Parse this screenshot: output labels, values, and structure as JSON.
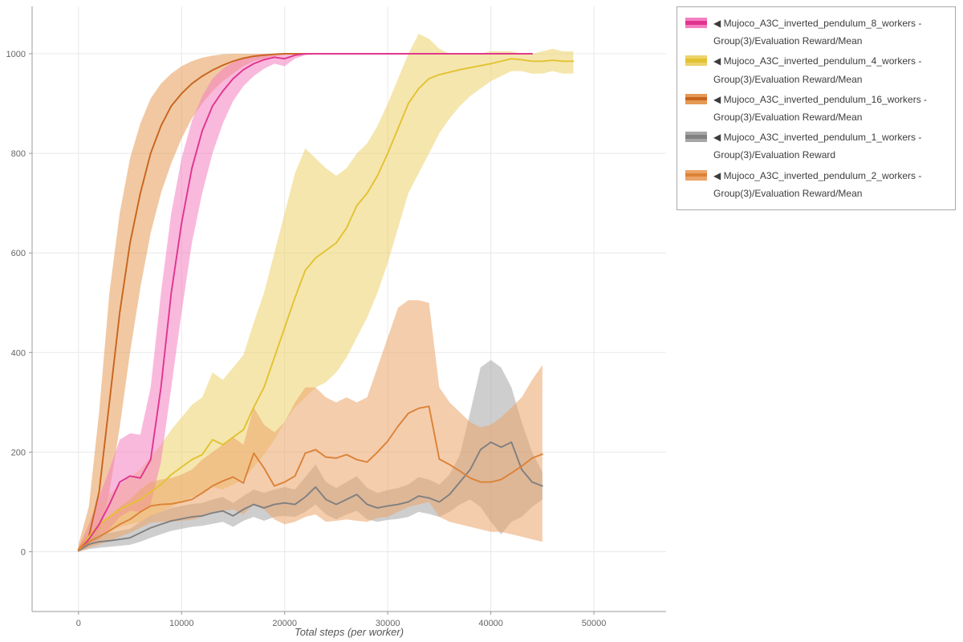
{
  "page": {
    "background": "#ffffff"
  },
  "axis": {
    "x_title": "Total steps (per worker)"
  },
  "legend": {
    "marker": "◀"
  },
  "chart_data": {
    "type": "line",
    "title": "",
    "xlabel": "Total steps (per worker)",
    "ylabel": "",
    "grid": true,
    "legend_position": "top-right",
    "xlim": [
      -4500,
      57000
    ],
    "ylim": [
      -120,
      1095
    ],
    "xticks": [
      0,
      10000,
      20000,
      30000,
      40000,
      50000
    ],
    "yticks": [
      0,
      200,
      400,
      600,
      800,
      1000
    ],
    "draw_order": [
      2,
      1,
      0,
      3,
      4
    ],
    "series": [
      {
        "name": "Mujoco_A3C_inverted_pendulum_8_workers - Group(3)/Evaluation Reward/Mean",
        "color": "#e03490",
        "band_color": "#f47fc0",
        "x0": 0,
        "dx": 1000,
        "mean": [
          2,
          25,
          55,
          95,
          140,
          152,
          148,
          185,
          330,
          520,
          660,
          770,
          845,
          895,
          925,
          950,
          968,
          980,
          988,
          993,
          990,
          997,
          1000,
          1000,
          1000,
          1000,
          1000,
          1000,
          1000,
          1000,
          1000,
          1000,
          1000,
          1000,
          1000,
          1000,
          1000,
          1000,
          1000,
          1000,
          1000,
          1000,
          1000,
          1000,
          1000
        ],
        "lo": [
          0,
          10,
          25,
          45,
          70,
          82,
          80,
          95,
          180,
          330,
          480,
          620,
          720,
          800,
          860,
          905,
          935,
          955,
          970,
          980,
          975,
          990,
          997,
          999,
          1000,
          1000,
          1000,
          1000,
          1000,
          1000,
          1000,
          1000,
          1000,
          1000,
          1000,
          1000,
          1000,
          1000,
          1000,
          1000,
          1000,
          1000,
          1000,
          1000,
          1000
        ],
        "hi": [
          8,
          55,
          110,
          165,
          225,
          238,
          235,
          330,
          520,
          680,
          790,
          865,
          915,
          950,
          970,
          983,
          992,
          997,
          1000,
          1000,
          1000,
          1000,
          1000,
          1000,
          1000,
          1000,
          1000,
          1000,
          1000,
          1000,
          1000,
          1000,
          1000,
          1000,
          1000,
          1000,
          1000,
          1000,
          1000,
          1000,
          1000,
          1000,
          1000,
          1000,
          1000
        ]
      },
      {
        "name": "Mujoco_A3C_inverted_pendulum_4_workers - Group(3)/Evaluation Reward/Mean",
        "color": "#e2c231",
        "band_color": "#ecd26b",
        "x0": 0,
        "dx": 1000,
        "mean": [
          3,
          30,
          55,
          70,
          85,
          95,
          105,
          120,
          135,
          155,
          170,
          185,
          195,
          225,
          215,
          230,
          245,
          290,
          330,
          390,
          450,
          510,
          565,
          590,
          605,
          620,
          650,
          695,
          720,
          755,
          800,
          850,
          900,
          930,
          950,
          958,
          963,
          968,
          972,
          976,
          980,
          985,
          990,
          988,
          985,
          985,
          987,
          985,
          985
        ],
        "lo": [
          0,
          15,
          30,
          40,
          50,
          55,
          60,
          70,
          80,
          90,
          100,
          110,
          115,
          130,
          125,
          135,
          145,
          170,
          195,
          225,
          260,
          290,
          310,
          330,
          340,
          360,
          390,
          430,
          470,
          520,
          580,
          650,
          720,
          760,
          800,
          840,
          870,
          895,
          915,
          930,
          945,
          955,
          965,
          965,
          960,
          960,
          965,
          960,
          960
        ],
        "hi": [
          8,
          60,
          95,
          115,
          135,
          150,
          165,
          190,
          215,
          245,
          270,
          295,
          310,
          360,
          345,
          370,
          395,
          460,
          520,
          600,
          680,
          760,
          810,
          790,
          770,
          755,
          770,
          800,
          820,
          855,
          900,
          950,
          1000,
          1040,
          1030,
          1010,
          1000,
          1000,
          1000,
          1000,
          1005,
          1005,
          1005,
          1000,
          1000,
          1005,
          1010,
          1005,
          1005
        ]
      },
      {
        "name": "Mujoco_A3C_inverted_pendulum_16_workers - Group(3)/Evaluation Reward/Mean",
        "color": "#c8641c",
        "band_color": "#e59a55",
        "x0": 0,
        "dx": 1000,
        "mean": [
          5,
          30,
          120,
          300,
          480,
          620,
          720,
          800,
          855,
          895,
          920,
          940,
          955,
          967,
          977,
          985,
          991,
          995,
          997,
          999,
          1000,
          1000,
          1000,
          1000,
          1000,
          1000,
          1000,
          1000,
          1000,
          1000,
          1000,
          1000,
          1000,
          1000,
          1000,
          1000,
          1000,
          1000,
          1000,
          1000,
          1000,
          1000,
          1000,
          1000,
          1000
        ],
        "lo": [
          0,
          10,
          40,
          120,
          250,
          400,
          530,
          640,
          720,
          780,
          830,
          870,
          900,
          925,
          945,
          960,
          975,
          985,
          990,
          995,
          998,
          1000,
          1000,
          1000,
          1000,
          1000,
          1000,
          1000,
          1000,
          1000,
          1000,
          1000,
          1000,
          1000,
          1000,
          1000,
          1000,
          1000,
          1000,
          1000,
          1000,
          1000,
          1000,
          1000,
          1000
        ],
        "hi": [
          15,
          90,
          280,
          520,
          680,
          790,
          860,
          910,
          940,
          960,
          975,
          985,
          992,
          996,
          999,
          1000,
          1000,
          1000,
          1000,
          1000,
          1000,
          1000,
          1000,
          1000,
          1000,
          1000,
          1000,
          1000,
          1000,
          1000,
          1000,
          1000,
          1000,
          1000,
          1000,
          1000,
          1000,
          1000,
          1000,
          1000,
          1000,
          1000,
          1000,
          1000,
          1000
        ]
      },
      {
        "name": "Mujoco_A3C_inverted_pendulum_1_workers - Group(3)/Evaluation Reward",
        "color": "#808080",
        "band_color": "#a6a6a6",
        "x0": 0,
        "dx": 1000,
        "mean": [
          2,
          15,
          20,
          22,
          25,
          28,
          38,
          48,
          55,
          62,
          66,
          70,
          72,
          78,
          82,
          72,
          85,
          95,
          88,
          95,
          98,
          95,
          110,
          130,
          105,
          95,
          105,
          115,
          95,
          88,
          92,
          95,
          100,
          112,
          108,
          100,
          115,
          140,
          165,
          205,
          220,
          210,
          220,
          165,
          140,
          132
        ],
        "lo": [
          0,
          5,
          8,
          10,
          12,
          14,
          20,
          28,
          35,
          42,
          46,
          50,
          52,
          56,
          60,
          50,
          62,
          70,
          62,
          70,
          72,
          70,
          80,
          95,
          75,
          65,
          75,
          82,
          65,
          60,
          64,
          66,
          70,
          80,
          76,
          70,
          80,
          95,
          105,
          90,
          60,
          35,
          60,
          70,
          90,
          105
        ],
        "hi": [
          6,
          28,
          35,
          38,
          42,
          46,
          60,
          72,
          80,
          88,
          92,
          96,
          98,
          105,
          110,
          98,
          112,
          125,
          118,
          125,
          130,
          125,
          150,
          175,
          140,
          128,
          140,
          152,
          128,
          118,
          124,
          128,
          135,
          150,
          145,
          135,
          155,
          195,
          280,
          370,
          385,
          370,
          330,
          260,
          200,
          160
        ]
      },
      {
        "name": "Mujoco_A3C_inverted_pendulum_2_workers - Group(3)/Evaluation Reward/Mean",
        "color": "#dc8236",
        "band_color": "#eba469",
        "x0": 0,
        "dx": 1000,
        "mean": [
          3,
          20,
          30,
          42,
          55,
          65,
          80,
          92,
          95,
          96,
          100,
          105,
          118,
          132,
          142,
          150,
          138,
          198,
          168,
          132,
          140,
          152,
          198,
          205,
          190,
          188,
          195,
          185,
          180,
          200,
          222,
          252,
          278,
          288,
          292,
          186,
          175,
          162,
          148,
          140,
          140,
          145,
          158,
          172,
          188,
          196
        ],
        "lo": [
          0,
          8,
          14,
          22,
          30,
          38,
          48,
          58,
          60,
          60,
          62,
          64,
          70,
          78,
          82,
          85,
          75,
          95,
          85,
          65,
          55,
          60,
          70,
          75,
          60,
          62,
          65,
          62,
          60,
          68,
          70,
          80,
          90,
          95,
          100,
          70,
          60,
          55,
          50,
          45,
          40,
          40,
          35,
          30,
          25,
          20
        ],
        "hi": [
          8,
          40,
          55,
          72,
          90,
          105,
          125,
          140,
          145,
          148,
          155,
          165,
          185,
          200,
          215,
          230,
          215,
          290,
          255,
          240,
          260,
          300,
          330,
          330,
          310,
          300,
          310,
          300,
          310,
          370,
          430,
          490,
          505,
          505,
          500,
          330,
          300,
          280,
          260,
          250,
          255,
          270,
          290,
          310,
          345,
          375
        ]
      }
    ]
  }
}
